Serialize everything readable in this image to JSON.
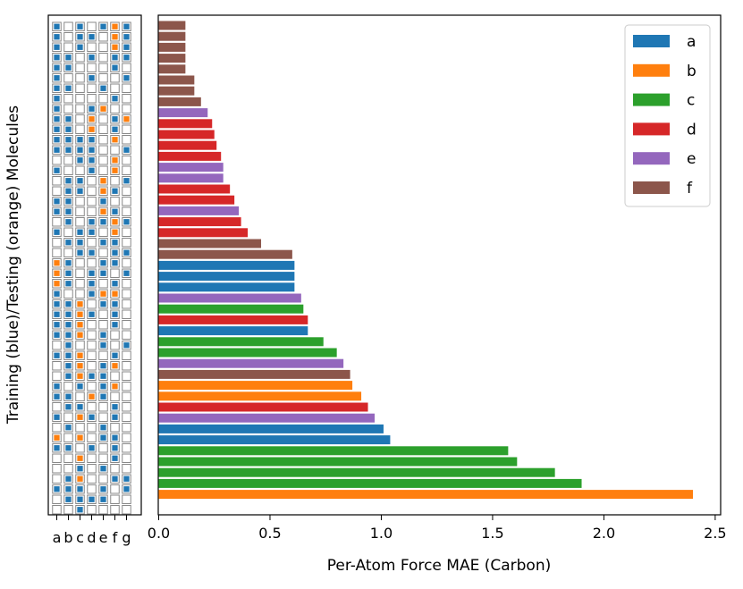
{
  "chart_data": {
    "type": "bar",
    "orientation": "horizontal",
    "xlabel": "Per-Atom Force MAE (Carbon)",
    "ylabel": "Training (blue)/Testing (orange) Molecules",
    "xlim": [
      0,
      2.5
    ],
    "xticks": [
      0,
      0.5,
      1,
      1.5,
      2,
      2.5
    ],
    "xtick_labels": [
      "0.0",
      "0.5",
      "1.0",
      "1.5",
      "2.0",
      "2.5"
    ],
    "legend_position": "top-right",
    "categories": [
      "a",
      "b",
      "c",
      "d",
      "e",
      "f"
    ],
    "colors": {
      "a": "#1f77b4",
      "b": "#ff7f0e",
      "c": "#2ca02c",
      "d": "#d62728",
      "e": "#9467bd",
      "f": "#8c564b"
    },
    "grid_colors": {
      "train": "#1f77b4",
      "test": "#ff7f0e"
    },
    "grid_columns": [
      "a",
      "b",
      "c",
      "d",
      "e",
      "f",
      "g"
    ],
    "bars": [
      {
        "category": "f",
        "value": 0.12
      },
      {
        "category": "f",
        "value": 0.12
      },
      {
        "category": "f",
        "value": 0.12
      },
      {
        "category": "f",
        "value": 0.12
      },
      {
        "category": "f",
        "value": 0.12
      },
      {
        "category": "f",
        "value": 0.16
      },
      {
        "category": "f",
        "value": 0.16
      },
      {
        "category": "f",
        "value": 0.19
      },
      {
        "category": "e",
        "value": 0.22
      },
      {
        "category": "d",
        "value": 0.24
      },
      {
        "category": "d",
        "value": 0.25
      },
      {
        "category": "d",
        "value": 0.26
      },
      {
        "category": "d",
        "value": 0.28
      },
      {
        "category": "e",
        "value": 0.29
      },
      {
        "category": "e",
        "value": 0.29
      },
      {
        "category": "d",
        "value": 0.32
      },
      {
        "category": "d",
        "value": 0.34
      },
      {
        "category": "e",
        "value": 0.36
      },
      {
        "category": "d",
        "value": 0.37
      },
      {
        "category": "d",
        "value": 0.4
      },
      {
        "category": "f",
        "value": 0.46
      },
      {
        "category": "f",
        "value": 0.6
      },
      {
        "category": "a",
        "value": 0.61
      },
      {
        "category": "a",
        "value": 0.61
      },
      {
        "category": "a",
        "value": 0.61
      },
      {
        "category": "e",
        "value": 0.64
      },
      {
        "category": "c",
        "value": 0.65
      },
      {
        "category": "d",
        "value": 0.67
      },
      {
        "category": "a",
        "value": 0.67
      },
      {
        "category": "c",
        "value": 0.74
      },
      {
        "category": "c",
        "value": 0.8
      },
      {
        "category": "e",
        "value": 0.83
      },
      {
        "category": "f",
        "value": 0.86
      },
      {
        "category": "b",
        "value": 0.87
      },
      {
        "category": "b",
        "value": 0.91
      },
      {
        "category": "d",
        "value": 0.94
      },
      {
        "category": "e",
        "value": 0.97
      },
      {
        "category": "a",
        "value": 1.01
      },
      {
        "category": "a",
        "value": 1.04
      },
      {
        "category": "c",
        "value": 1.57
      },
      {
        "category": "c",
        "value": 1.61
      },
      {
        "category": "c",
        "value": 1.78
      },
      {
        "category": "c",
        "value": 1.9
      },
      {
        "category": "b",
        "value": 2.4
      }
    ],
    "grid_rows": [
      "T.T.TST",
      "T.TT.ST",
      "T.T..ST",
      "TT.T.TT",
      "TT...T.",
      "T..T..T",
      "TT..T..",
      "T....T.",
      "T..TS..",
      "TT.S.TS",
      "TT.S.T.",
      "TTTT.S.",
      "TTTT..T",
      "..TT.S.",
      "T..T.S.",
      ".TT.S.T",
      ".TT.ST.",
      "TT..T..",
      "TT..ST.",
      ".T.TTST",
      "T.TT.S.",
      ".TT.TT.",
      "..TT.TT",
      "ST..TT.",
      "ST.TT.T",
      "ST.T.T.",
      "T..TSS.",
      "TTS.TT.",
      "TTST.T.",
      "TTS..T.",
      "TTS.T..",
      ".T..T.T",
      "TTS..T.",
      ".TS.TS.",
      ".TSTT..",
      "T.T.TS.",
      "TT.ST..",
      ".TT..T.",
      "T.ST.T.",
      ".T..T..",
      "S.S.TT.",
      "TT.T.T.",
      "..S..T.",
      "..T.T..",
      ".TS..TT",
      "TTT.T.T",
      ".TTTT..",
      "..T...."
    ]
  }
}
